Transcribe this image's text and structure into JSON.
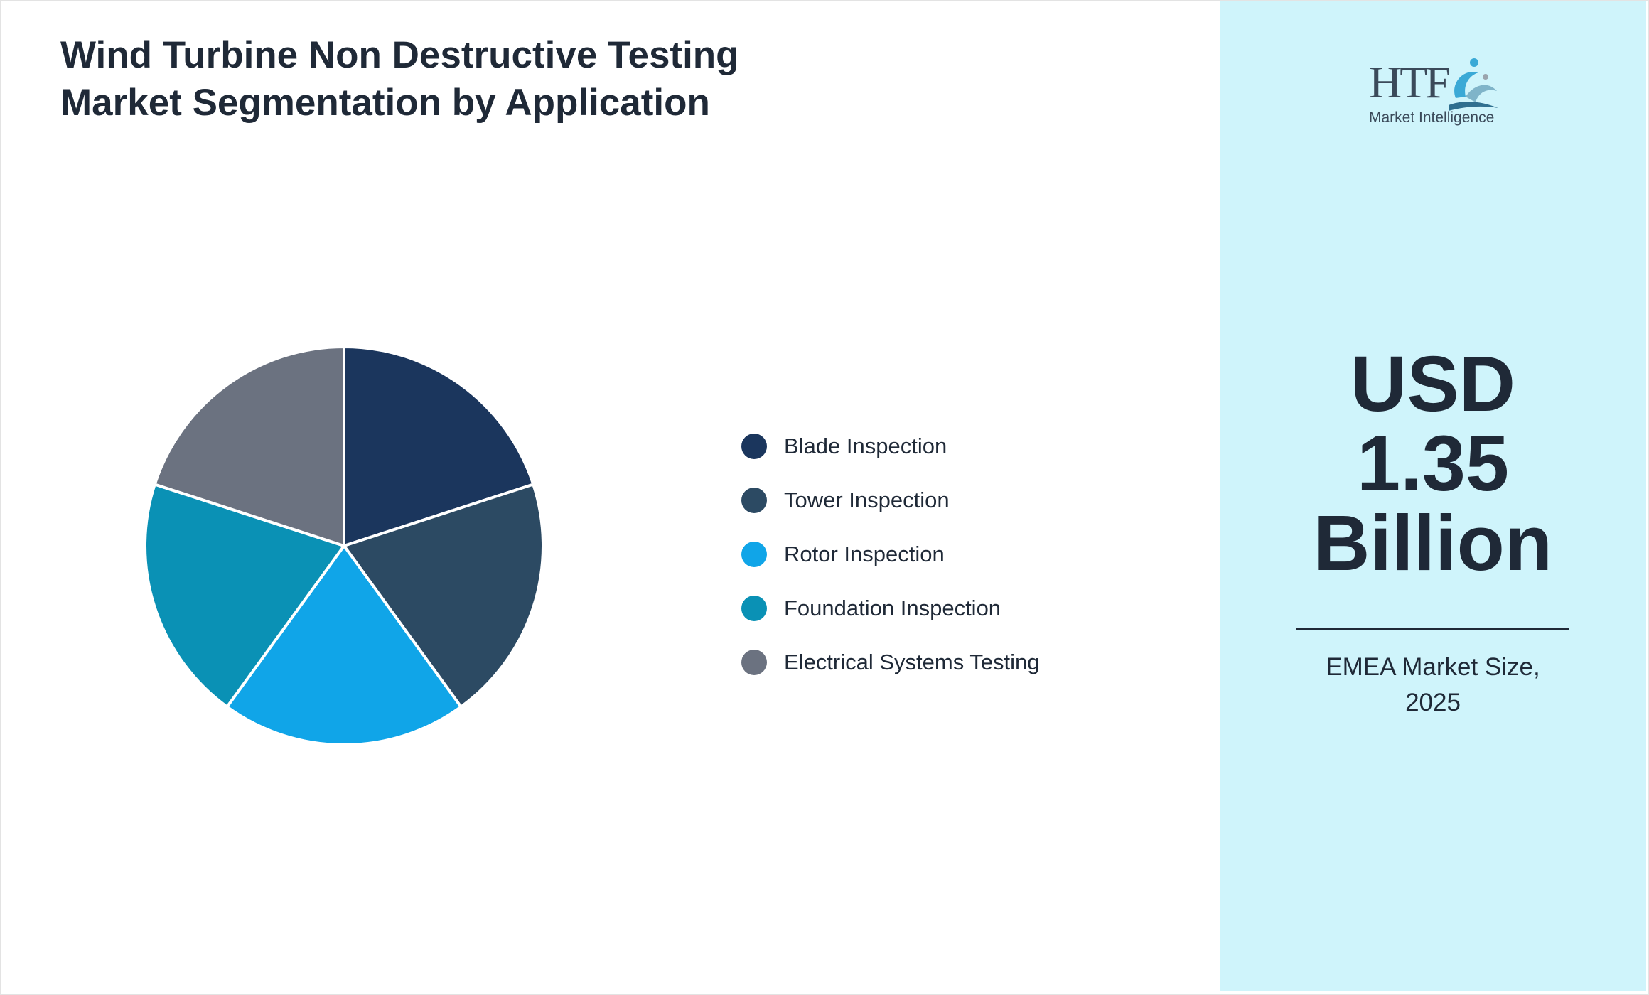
{
  "chart_data": {
    "type": "pie",
    "title": "Wind Turbine Non Destructive Testing Market Segmentation by Application",
    "categories": [
      "Blade Inspection",
      "Tower Inspection",
      "Rotor Inspection",
      "Foundation Inspection",
      "Electrical Systems Testing"
    ],
    "values": [
      20,
      20,
      20,
      20,
      20
    ],
    "colors": [
      "#1b365d",
      "#2c4a63",
      "#10a5e8",
      "#0a91b5",
      "#6b7280"
    ],
    "legend_position": "right"
  },
  "logo": {
    "mark": "HTF",
    "subtitle": "Market Intelligence",
    "icon": "swirl-logo-icon"
  },
  "highlight": {
    "value_lines": [
      "USD",
      "1.35",
      "Billion"
    ],
    "caption_lines": [
      "EMEA Market Size,",
      "2025"
    ]
  }
}
